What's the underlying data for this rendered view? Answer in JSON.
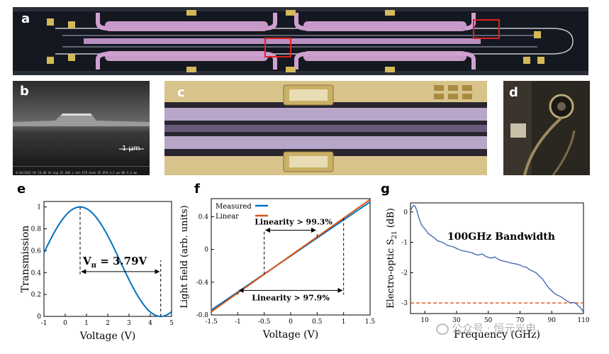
{
  "figure": {
    "panel_labels": [
      "a",
      "b",
      "c",
      "d",
      "e",
      "f",
      "g"
    ],
    "sem_scale_bar": "1 μm",
    "sem_info_bar": "4/30/2024  HV 10.00 kV  mag 65 000 x  det ETD  mode SE  HFW 4.5 μm  WD 4.4 mm",
    "watermark": "公众号 · 恒元光电"
  },
  "chart_data": [
    {
      "panel": "e",
      "type": "line",
      "xlabel": "Voltage (V)",
      "ylabel": "Transmission",
      "xlim": [
        -1,
        5
      ],
      "ylim": [
        0,
        1.05
      ],
      "xticks": [
        -1,
        0,
        1,
        2,
        3,
        4,
        5
      ],
      "yticks": [
        0,
        0.2,
        0.4,
        0.6,
        0.8,
        1
      ],
      "ytick_labels": [
        "0",
        "0.2",
        "0.4",
        "0.6",
        "0.8",
        "1"
      ],
      "grid": false,
      "peak_x": 0.7,
      "null_x": 4.49,
      "color": "#0072bd",
      "annotation": {
        "text_main": "V",
        "text_sub": "π",
        "text_rest": " = 3.79V",
        "from_x": 0.7,
        "to_x": 4.49,
        "y": 0.5
      }
    },
    {
      "panel": "f",
      "type": "line",
      "xlabel": "Voltage (V)",
      "ylabel": "Light field (arb. units)",
      "xlim": [
        -1.5,
        1.5
      ],
      "ylim": [
        -0.8,
        0.62
      ],
      "xticks": [
        -1.5,
        -1,
        -0.5,
        0,
        0.5,
        1,
        1.5
      ],
      "yticks": [
        -0.8,
        -0.4,
        0,
        0.4
      ],
      "grid": false,
      "legend": "top-left",
      "series": [
        {
          "name": "Measured",
          "color": "#0072bd",
          "x": [
            -1.5,
            1.5
          ],
          "y": [
            -0.74,
            0.58
          ]
        },
        {
          "name": "Linear",
          "color": "#d95319",
          "x": [
            -1.5,
            1.5
          ],
          "y": [
            -0.76,
            0.61
          ]
        }
      ],
      "annotations": [
        {
          "text": "Linearity > 99.3%",
          "from_x": -0.5,
          "to_x": 0.5,
          "y": 0.2
        },
        {
          "text": "Linearity > 97.9%",
          "from_x": -1,
          "to_x": 1,
          "y": -0.5
        }
      ]
    },
    {
      "panel": "g",
      "type": "line",
      "title": "100GHz Bandwidth",
      "xlabel": "Frequency (GHz)",
      "ylabel_main": "Electro-optic S",
      "ylabel_sub": "21",
      "ylabel_tail": " (dB)",
      "xlim": [
        1,
        110
      ],
      "ylim": [
        -3.35,
        0.3
      ],
      "xticks": [
        10,
        30,
        50,
        70,
        90,
        110
      ],
      "yticks": [
        0,
        -1,
        -2,
        -3
      ],
      "ytick_labels": [
        "0",
        "-1",
        "-2",
        "-3"
      ],
      "grid": false,
      "color": "#3d5fae",
      "threshold": {
        "y": -3,
        "color": "#d95319"
      },
      "x": [
        1,
        2,
        3,
        4,
        5,
        6,
        7,
        8,
        9,
        10,
        12,
        14,
        16,
        18,
        20,
        22,
        24,
        26,
        28,
        30,
        32,
        34,
        36,
        38,
        40,
        42,
        44,
        46,
        48,
        50,
        52,
        54,
        56,
        58,
        60,
        62,
        64,
        66,
        68,
        70,
        72,
        74,
        76,
        78,
        80,
        82,
        84,
        86,
        88,
        90,
        92,
        94,
        96,
        98,
        100,
        102,
        104,
        106,
        108,
        110
      ],
      "y": [
        0.05,
        0.15,
        0.22,
        0.18,
        0.05,
        -0.15,
        -0.3,
        -0.42,
        -0.5,
        -0.55,
        -0.7,
        -0.78,
        -0.85,
        -0.95,
        -0.98,
        -1.02,
        -1.1,
        -1.12,
        -1.15,
        -1.2,
        -1.25,
        -1.28,
        -1.3,
        -1.32,
        -1.35,
        -1.4,
        -1.42,
        -1.38,
        -1.45,
        -1.5,
        -1.52,
        -1.48,
        -1.55,
        -1.6,
        -1.62,
        -1.65,
        -1.68,
        -1.7,
        -1.72,
        -1.75,
        -1.8,
        -1.82,
        -1.9,
        -1.95,
        -2.0,
        -2.1,
        -2.2,
        -2.35,
        -2.5,
        -2.6,
        -2.7,
        -2.75,
        -2.8,
        -2.88,
        -2.95,
        -3.0,
        -2.98,
        -3.05,
        -3.15,
        -3.3
      ]
    }
  ]
}
